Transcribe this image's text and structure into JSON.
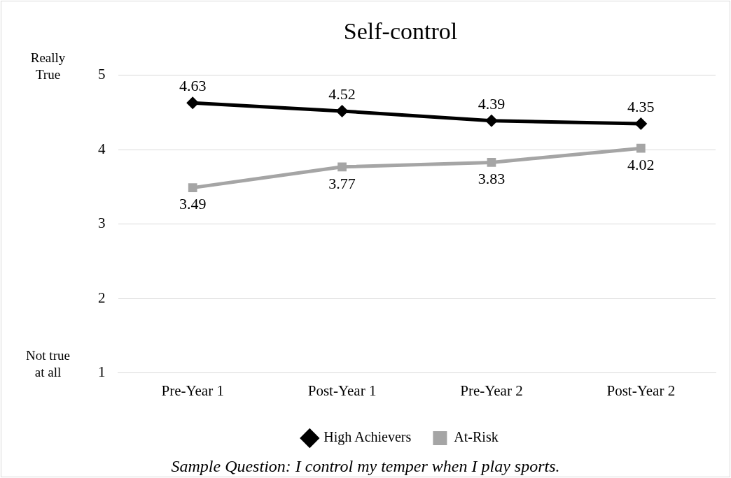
{
  "chart_data": {
    "type": "line",
    "title": "Self-control",
    "categories": [
      "Pre-Year 1",
      "Post-Year 1",
      "Pre-Year 2",
      "Post-Year 2"
    ],
    "series": [
      {
        "name": "High Achievers",
        "color": "#000000",
        "marker": "diamond",
        "values": [
          4.63,
          4.52,
          4.39,
          4.35
        ]
      },
      {
        "name": "At-Risk",
        "color": "#a5a5a5",
        "marker": "square",
        "values": [
          3.49,
          3.77,
          3.83,
          4.02
        ]
      }
    ],
    "ylim": [
      1,
      5
    ],
    "yticks": [
      1,
      2,
      3,
      4,
      5
    ],
    "grid": "y",
    "legend": "bottom",
    "data_labels": true,
    "line_style": "solid",
    "annotations": [
      "Really True",
      "Not true at all",
      "Sample Question: I control my temper when I play sports."
    ]
  }
}
